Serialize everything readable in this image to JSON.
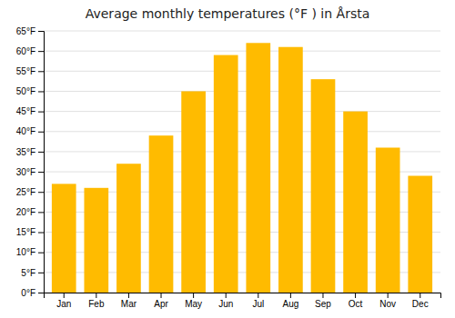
{
  "chart_data": {
    "type": "bar",
    "title": "Average monthly temperatures (°F ) in Årsta",
    "categories": [
      "Jan",
      "Feb",
      "Mar",
      "Apr",
      "May",
      "Jun",
      "Jul",
      "Aug",
      "Sep",
      "Oct",
      "Nov",
      "Dec"
    ],
    "values": [
      27,
      26,
      32,
      39,
      50,
      59,
      62,
      61,
      53,
      45,
      36,
      29
    ],
    "color": "#FFBB00",
    "ylim": [
      0,
      65
    ],
    "yticks": [
      {
        "value": 0,
        "label": "0°F"
      },
      {
        "value": 5,
        "label": "5°F"
      },
      {
        "value": 10,
        "label": "10°F"
      },
      {
        "value": 15,
        "label": "15°F"
      },
      {
        "value": 20,
        "label": "20°F"
      },
      {
        "value": 25,
        "label": "25°F"
      },
      {
        "value": 30,
        "label": "30°F"
      },
      {
        "value": 35,
        "label": "35°F"
      },
      {
        "value": 40,
        "label": "40°F"
      },
      {
        "value": 45,
        "label": "45°F"
      },
      {
        "value": 50,
        "label": "50°F"
      },
      {
        "value": 55,
        "label": "55°F"
      },
      {
        "value": 60,
        "label": "60°F"
      },
      {
        "value": 65,
        "label": "65°F"
      }
    ],
    "grid": true
  }
}
